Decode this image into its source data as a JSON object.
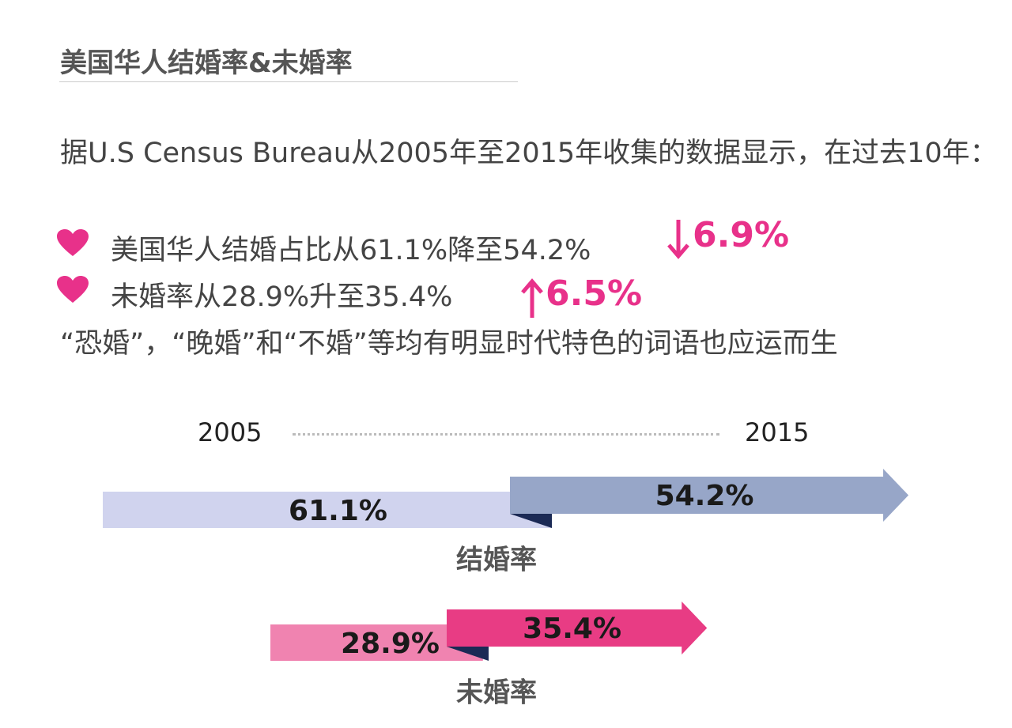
{
  "title": "美国华人结婚率&未婚率",
  "intro": "据U.S Census Bureau从2005年至2015年收集的数据显示，在过去10年：",
  "points": [
    {
      "text": "美国华人结婚占比从61.1%降至54.2%",
      "change": "6.9%"
    },
    {
      "text": "未婚率从28.9%升至35.4%",
      "change": "6.5%"
    }
  ],
  "closing": "“恐婚”，“晚婚”和“不婚”等均有明显时代特色的词语也应运而生",
  "timeline": {
    "start": "2005",
    "end": "2015"
  },
  "rates": [
    {
      "name": "结婚率",
      "from": {
        "value": 61.1,
        "label": "61.1%"
      },
      "to": {
        "value": 54.2,
        "label": "54.2%"
      }
    },
    {
      "name": "未婚率",
      "from": {
        "value": 28.9,
        "label": "28.9%"
      },
      "to": {
        "value": 35.4,
        "label": "35.4%"
      }
    }
  ]
}
